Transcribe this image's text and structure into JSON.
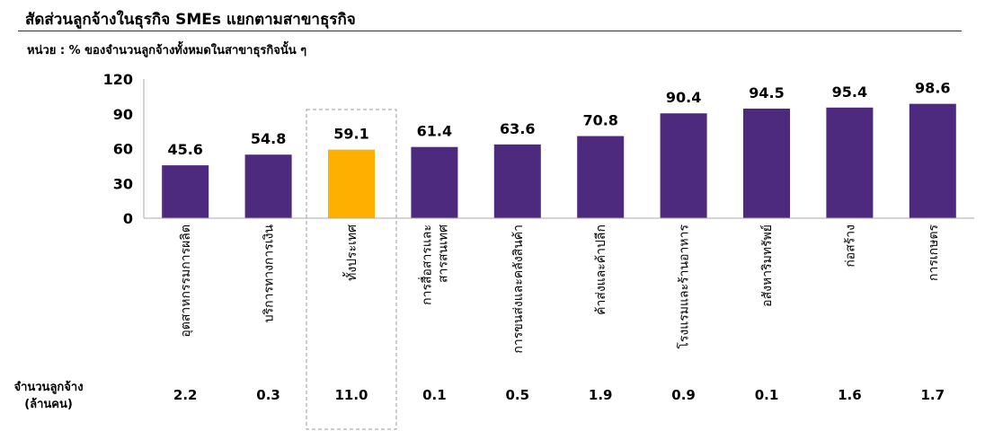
{
  "header": {
    "title": "สัดส่วนลูกจ้างในธุรกิจ SMEs แยกตามสาขาธุรกิจ",
    "unit": "หน่วย : % ของจำนวนลูกจ้างทั้งหมดในสาขาธุรกิจนั้น ๆ"
  },
  "employees": {
    "caption_line1": "จำนวนลูกจ้าง",
    "caption_line2": "(ล้านคน)",
    "values": [
      "2.2",
      "0.3",
      "11.0",
      "0.1",
      "0.5",
      "1.9",
      "0.9",
      "0.1",
      "1.6",
      "1.7"
    ]
  },
  "colors": {
    "bar": "#4e2a7e",
    "highlight": "#ffaf00",
    "axis": "#aaaaaa",
    "dashed_box": "#999999"
  },
  "chart_data": {
    "type": "bar",
    "categories": [
      [
        "อุตสาหกรรมการผลิต"
      ],
      [
        "บริการทางการเงิน"
      ],
      [
        "ทั้งประเทศ"
      ],
      [
        "การสื่อสารและ",
        "สารสนเทศ"
      ],
      [
        "การขนส่งและคลังสินค้า"
      ],
      [
        "ค้าส่งและค้าปลีก"
      ],
      [
        "โรงแรมและร้านอาหาร"
      ],
      [
        "อสังหาริมทรัพย์"
      ],
      [
        "ก่อสร้าง"
      ],
      [
        "การเกษตร"
      ]
    ],
    "values": [
      45.6,
      54.8,
      59.1,
      61.4,
      63.6,
      70.8,
      90.4,
      94.5,
      95.4,
      98.6
    ],
    "value_labels": [
      "45.6",
      "54.8",
      "59.1",
      "61.4",
      "63.6",
      "70.8",
      "90.4",
      "94.5",
      "95.4",
      "98.6"
    ],
    "highlight_index": 2,
    "ylim": [
      0,
      120
    ],
    "yticks": [
      "0",
      "30",
      "60",
      "90",
      "120"
    ],
    "ytick_values": [
      0,
      30,
      60,
      90,
      120
    ],
    "grid": false
  }
}
